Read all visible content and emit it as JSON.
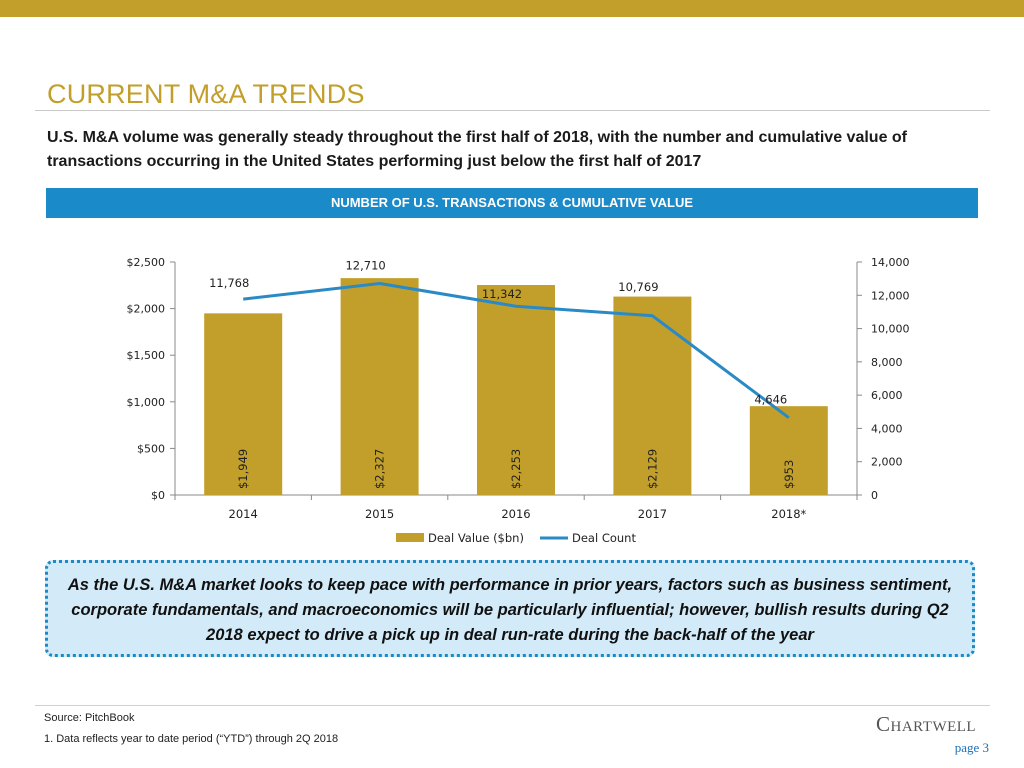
{
  "header": {
    "title": "CURRENT M&A TRENDS",
    "subtitle": "U.S. M&A volume was generally steady throughout the first half of 2018, with the number and cumulative value of transactions occurring in the United States performing just below the first half of 2017"
  },
  "chart_header": "NUMBER OF U.S. TRANSACTIONS & CUMULATIVE VALUE",
  "chart_data": {
    "type": "bar",
    "title": "NUMBER OF U.S. TRANSACTIONS & CUMULATIVE VALUE",
    "categories": [
      "2014",
      "2015",
      "2016",
      "2017",
      "2018*"
    ],
    "series": [
      {
        "name": "Deal Value ($bn)",
        "kind": "bar",
        "axis": "left",
        "values": [
          1949,
          2327,
          2253,
          2129,
          953
        ],
        "labels": [
          "$1,949",
          "$2,327",
          "$2,253",
          "$2,129",
          "$953"
        ],
        "color": "#c29f2a"
      },
      {
        "name": "Deal Count",
        "kind": "line",
        "axis": "right",
        "values": [
          11768,
          12710,
          11342,
          10769,
          4646
        ],
        "labels": [
          "11,768",
          "12,710",
          "11,342",
          "10,769",
          "4,646"
        ],
        "color": "#2a8ac6"
      }
    ],
    "y_left": {
      "range": [
        0,
        2500
      ],
      "ticks": [
        0,
        500,
        1000,
        1500,
        2000,
        2500
      ],
      "tick_labels": [
        "$0",
        "$500",
        "$1,000",
        "$1,500",
        "$2,000",
        "$2,500"
      ]
    },
    "y_right": {
      "range": [
        0,
        14000
      ],
      "ticks": [
        0,
        2000,
        4000,
        6000,
        8000,
        10000,
        12000,
        14000
      ],
      "tick_labels": [
        "0",
        "2,000",
        "4,000",
        "6,000",
        "8,000",
        "10,000",
        "12,000",
        "14,000"
      ]
    },
    "legend": {
      "position": "bottom"
    }
  },
  "callout": "As the U.S. M&A market looks to keep pace with performance in prior years, factors such as business sentiment, corporate fundamentals, and macroeconomics will be particularly influential; however, bullish results during Q2 2018 expect to drive a pick up in deal run-rate during the back-half of the year",
  "footer": {
    "source": "Source: PitchBook",
    "note": "1. Data reflects year to date period (“YTD”) through 2Q 2018",
    "logo": "Chartwell",
    "page": "page 3"
  },
  "colors": {
    "gold": "#c29f2a",
    "blue": "#1b8ac8",
    "callout_bg": "#d3ebf8"
  }
}
